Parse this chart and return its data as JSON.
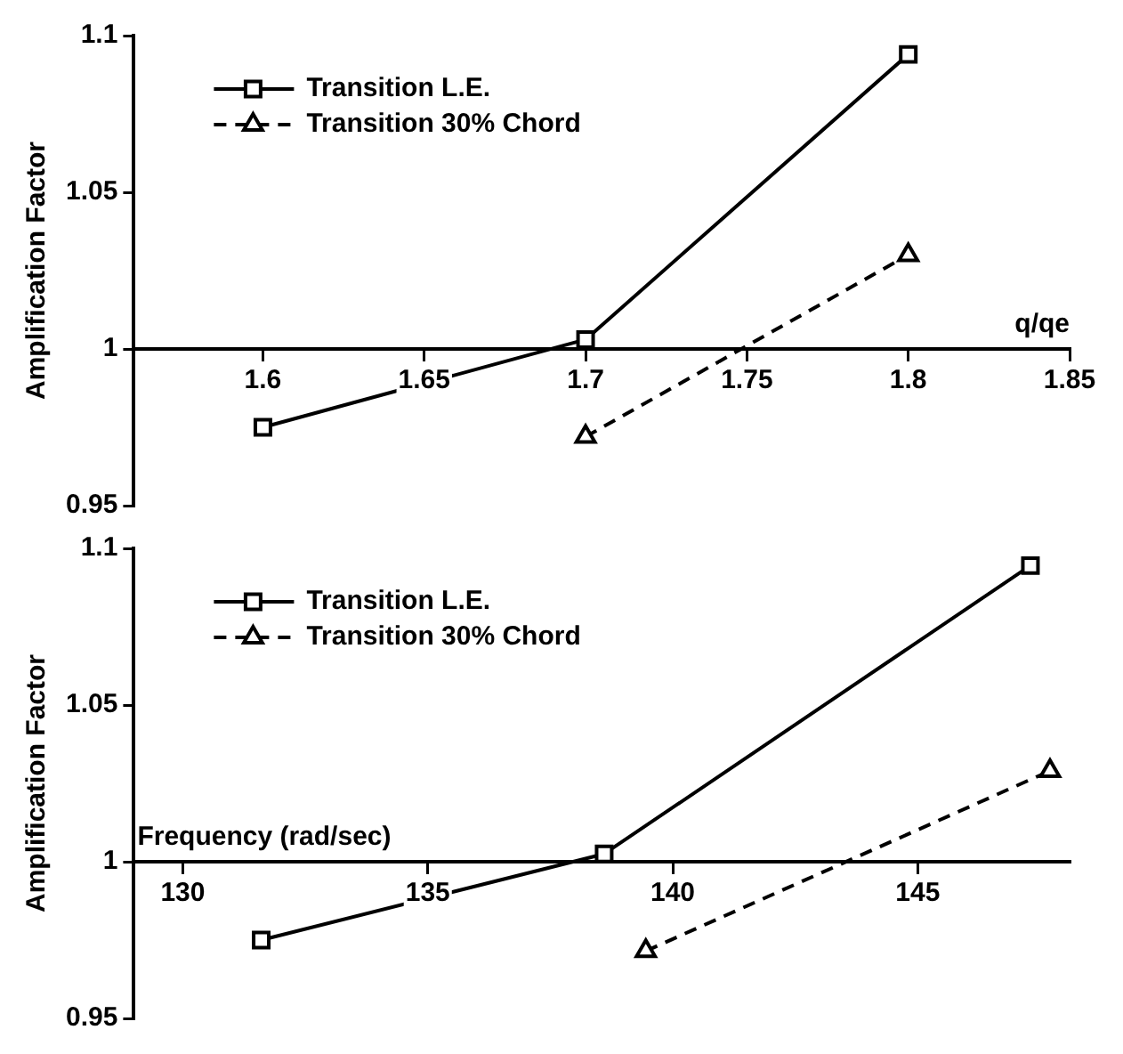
{
  "chart_data": [
    {
      "type": "line",
      "ylabel": "Amplification Factor",
      "xlabel": "q/qe",
      "xlim": [
        1.56,
        1.85
      ],
      "xticks": [
        1.6,
        1.65,
        1.7,
        1.75,
        1.8,
        1.85
      ],
      "ylim": [
        0.95,
        1.1
      ],
      "yticks": [
        0.95,
        1,
        1.05,
        1.1
      ],
      "grid": false,
      "legend": "top left",
      "series": [
        {
          "name": "Transition L.E.",
          "color": "#000000",
          "x": [
            1.6,
            1.7,
            1.8
          ],
          "values": [
            0.975,
            1.003,
            1.094
          ],
          "marker": "square",
          "line_style": "solid"
        },
        {
          "name": "Transition 30% Chord",
          "color": "#000000",
          "x": [
            1.7,
            1.8
          ],
          "values": [
            0.972,
            1.03
          ],
          "marker": "triangle",
          "line_style": "dashed"
        }
      ]
    },
    {
      "type": "line",
      "ylabel": "Amplification Factor",
      "xlabel": "Frequency (rad/sec)",
      "xlim": [
        129,
        148.1
      ],
      "xticks": [
        130,
        135,
        140,
        145
      ],
      "ylim": [
        0.95,
        1.1
      ],
      "yticks": [
        0.95,
        1,
        1.05,
        1.1
      ],
      "grid": false,
      "legend": "top left",
      "series": [
        {
          "name": "Transition L.E.",
          "color": "#000000",
          "x": [
            131.6,
            138.6,
            147.3
          ],
          "values": [
            0.975,
            1.0025,
            1.0945
          ],
          "marker": "square",
          "line_style": "solid"
        },
        {
          "name": "Transition 30% Chord",
          "color": "#000000",
          "x": [
            139.45,
            147.7
          ],
          "values": [
            0.9715,
            1.029
          ],
          "marker": "triangle",
          "line_style": "dashed"
        }
      ]
    }
  ]
}
